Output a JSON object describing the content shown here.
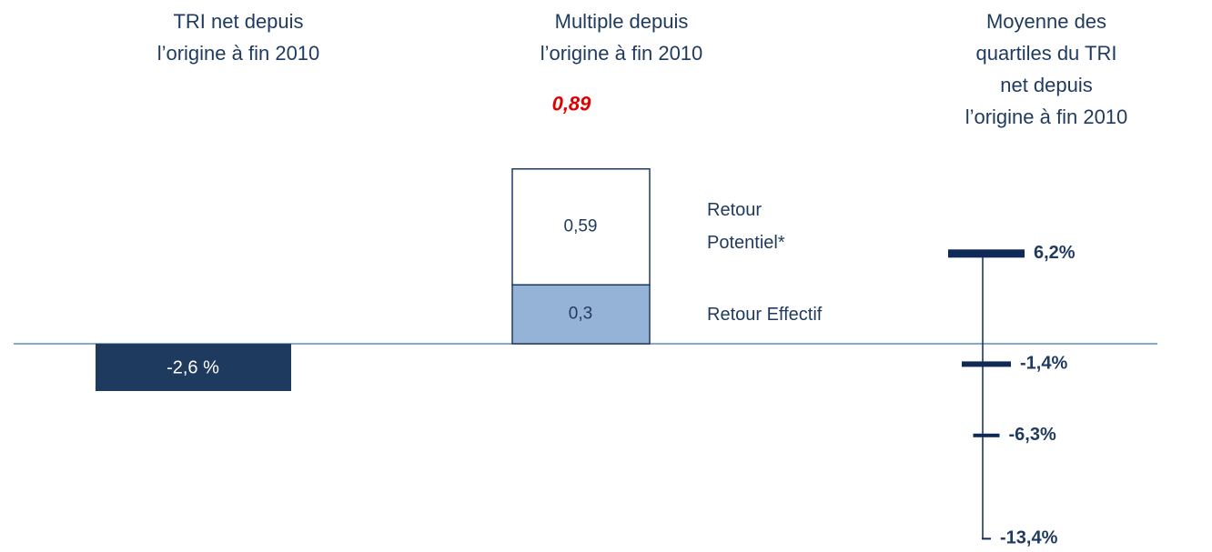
{
  "chart_data": [
    {
      "type": "bar",
      "title": "TRI net depuis\nl’origine  à fin 2010",
      "values": [
        -2.6
      ],
      "value_labels": [
        "-2,6 %"
      ],
      "color": "#1f3a5f"
    },
    {
      "type": "stacked",
      "title": "Multiple depuis\nl’origine à fin 2010",
      "series": [
        {
          "name": "Retour Effectif",
          "color": "#95b3d7",
          "values": [
            0.3
          ],
          "value_labels": [
            "0,3"
          ]
        },
        {
          "name": "Retour Potentiel*",
          "color": "#ffffff",
          "values": [
            0.59
          ],
          "value_labels": [
            "0,59"
          ]
        }
      ],
      "total": 0.89,
      "total_label": "0,89",
      "total_color": "#e00000"
    },
    {
      "type": "quartiles",
      "title": "Moyenne des quartiles du TRI\nnet depuis l’origine à fin 2010",
      "values": [
        6.2,
        -1.4,
        -6.3,
        -13.4
      ],
      "value_labels": [
        "6,2%",
        "-1,4%",
        "-6,3%",
        "-13,4%"
      ],
      "color": "#0f2a56"
    }
  ]
}
